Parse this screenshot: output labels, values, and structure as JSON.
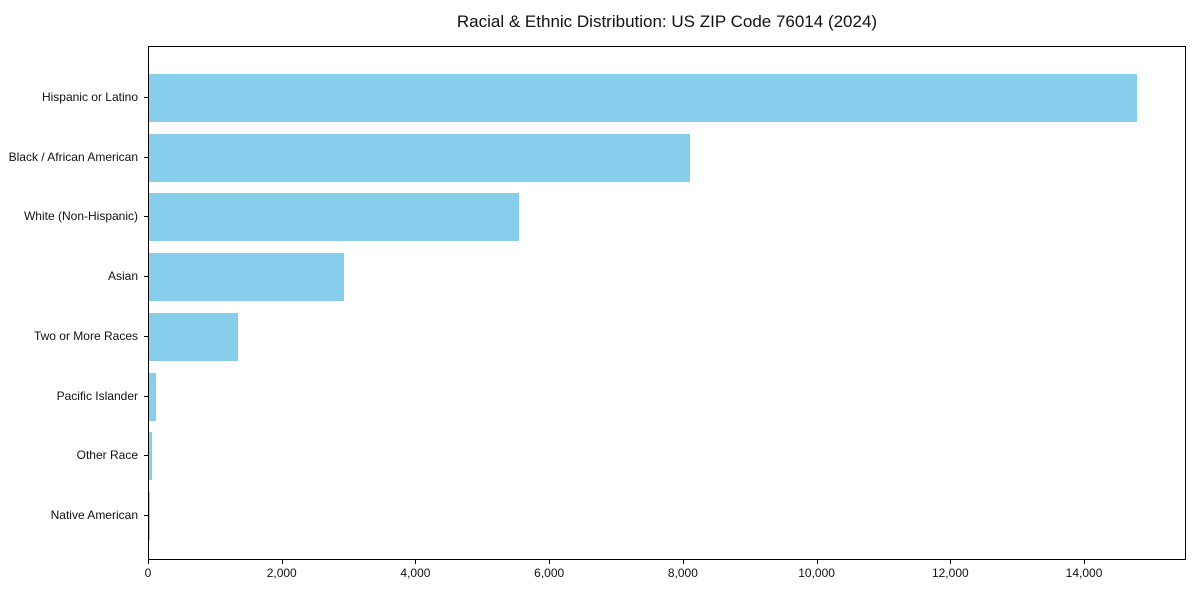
{
  "chart_data": {
    "type": "bar",
    "orientation": "horizontal",
    "title": "Racial & Ethnic Distribution: US ZIP Code 76014 (2024)",
    "categories": [
      "Hispanic or Latino",
      "Black / African American",
      "White (Non-Hispanic)",
      "Asian",
      "Two or More Races",
      "Pacific Islander",
      "Other Race",
      "Native American"
    ],
    "values": [
      14780,
      8090,
      5540,
      2920,
      1330,
      105,
      45,
      15
    ],
    "bar_color": "#87CEEB",
    "xlabel": "",
    "ylabel": "",
    "xlim": [
      0,
      15525
    ],
    "x_ticks": [
      0,
      2000,
      4000,
      6000,
      8000,
      10000,
      12000,
      14000
    ],
    "x_tick_labels": [
      "0",
      "2,000",
      "4,000",
      "6,000",
      "8,000",
      "10,000",
      "12,000",
      "14,000"
    ],
    "grid": false,
    "legend": false,
    "frame": "full-box",
    "text_color": "#111111",
    "spine_color": "#000000"
  }
}
